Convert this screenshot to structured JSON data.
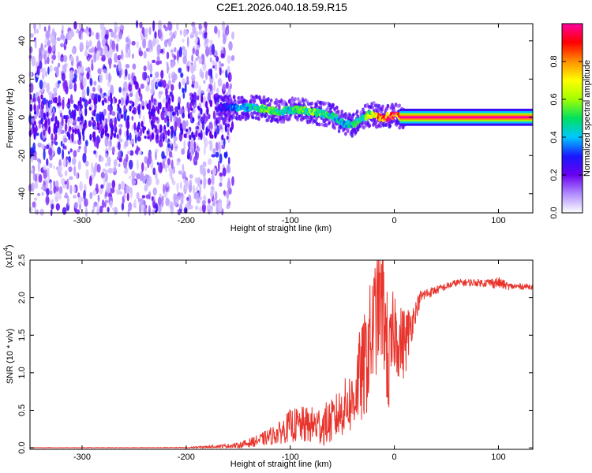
{
  "title": "C2E1.2026.040.18.59.R15",
  "chart_data": [
    {
      "type": "heatmap",
      "xlabel": "Height of straight line (km)",
      "ylabel": "Frequency (Hz)",
      "xlim": [
        -350,
        133
      ],
      "ylim": [
        -50,
        49
      ],
      "x_ticks": [
        -300,
        -200,
        -100,
        0,
        100
      ],
      "y_ticks": [
        -40,
        -20,
        0,
        20,
        40
      ],
      "x_tick_labels": [
        "-300",
        "-200",
        "-100",
        "0",
        "100"
      ],
      "y_tick_labels": [
        "-40",
        "-20",
        "0",
        "20",
        "40"
      ],
      "colorbar": {
        "label": "Normalized spectral amplitude",
        "range": [
          0.0,
          1.0
        ],
        "ticks": [
          0.0,
          0.2,
          0.4,
          0.6,
          0.8
        ],
        "tick_labels": [
          "0.0",
          "0.2",
          "0.4",
          "0.6",
          "0.8"
        ],
        "colormap": [
          "#ffffff",
          "#b08cff",
          "#6a00f0",
          "#1818ff",
          "#00c8ff",
          "#00e060",
          "#a0ff00",
          "#ffff00",
          "#ff9000",
          "#ff0000",
          "#ff00a0"
        ]
      },
      "noise_region_x": [
        -350,
        -155
      ],
      "signal_track": {
        "x": [
          -170,
          -160,
          -150,
          -140,
          -130,
          -120,
          -110,
          -100,
          -90,
          -80,
          -70,
          -60,
          -50,
          -40,
          -30,
          -20,
          -15,
          -10,
          0,
          10,
          133
        ],
        "y": [
          5,
          5,
          5,
          5,
          5,
          4,
          3,
          4,
          4,
          3,
          2,
          1,
          -3,
          -4,
          0,
          2,
          0,
          0,
          1,
          0,
          0
        ],
        "amplitude": [
          0.25,
          0.3,
          0.45,
          0.45,
          0.55,
          0.6,
          0.55,
          0.5,
          0.55,
          0.6,
          0.55,
          0.5,
          0.45,
          0.5,
          0.55,
          0.7,
          0.9,
          0.95,
          0.95,
          1.0,
          1.0
        ]
      }
    },
    {
      "type": "line",
      "xlabel": "Height of straight line (km)",
      "ylabel": "SNR (10 * v/v)",
      "y_multiplier": "(x10",
      "y_multiplier_exp": "4",
      "xlim": [
        -350,
        133
      ],
      "ylim": [
        -0.02,
        2.5
      ],
      "x_ticks": [
        -300,
        -200,
        -100,
        0,
        100
      ],
      "y_ticks": [
        0.0,
        0.5,
        1.0,
        1.5,
        2.0,
        2.5
      ],
      "x_tick_labels": [
        "-300",
        "-200",
        "-100",
        "0",
        "100"
      ],
      "y_tick_labels": [
        "0.0",
        "0.5",
        "1.0",
        "1.5",
        "2.0",
        "2.5"
      ],
      "color": "#e8342c",
      "series": [
        {
          "x": [
            -350,
            -300,
            -250,
            -200,
            -170,
            -150,
            -130,
            -110,
            -100,
            -90,
            -80,
            -70,
            -60,
            -50,
            -45,
            -40,
            -35,
            -30,
            -25,
            -20,
            -15,
            -10,
            -5,
            0,
            5,
            10,
            15,
            20,
            25,
            30,
            40,
            50,
            60,
            70,
            80,
            90,
            100,
            110,
            120,
            133
          ],
          "y": [
            0.0,
            0.0,
            0.0,
            0.0,
            0.02,
            0.03,
            0.1,
            0.2,
            0.3,
            0.3,
            0.3,
            0.3,
            0.35,
            0.5,
            0.6,
            0.6,
            0.9,
            1.0,
            1.3,
            1.6,
            2.0,
            1.8,
            1.0,
            1.6,
            1.4,
            1.4,
            1.6,
            1.8,
            2.0,
            2.05,
            2.1,
            2.15,
            2.2,
            2.2,
            2.2,
            2.2,
            2.2,
            2.15,
            2.15,
            2.15
          ],
          "spread": [
            0.005,
            0.005,
            0.005,
            0.008,
            0.02,
            0.04,
            0.08,
            0.15,
            0.22,
            0.25,
            0.25,
            0.28,
            0.3,
            0.35,
            0.4,
            0.45,
            0.6,
            0.7,
            0.8,
            0.8,
            0.9,
            0.8,
            0.8,
            0.6,
            0.5,
            0.5,
            0.3,
            0.15,
            0.1,
            0.08,
            0.06,
            0.05,
            0.05,
            0.05,
            0.05,
            0.06,
            0.08,
            0.05,
            0.04,
            0.04
          ]
        }
      ]
    }
  ]
}
